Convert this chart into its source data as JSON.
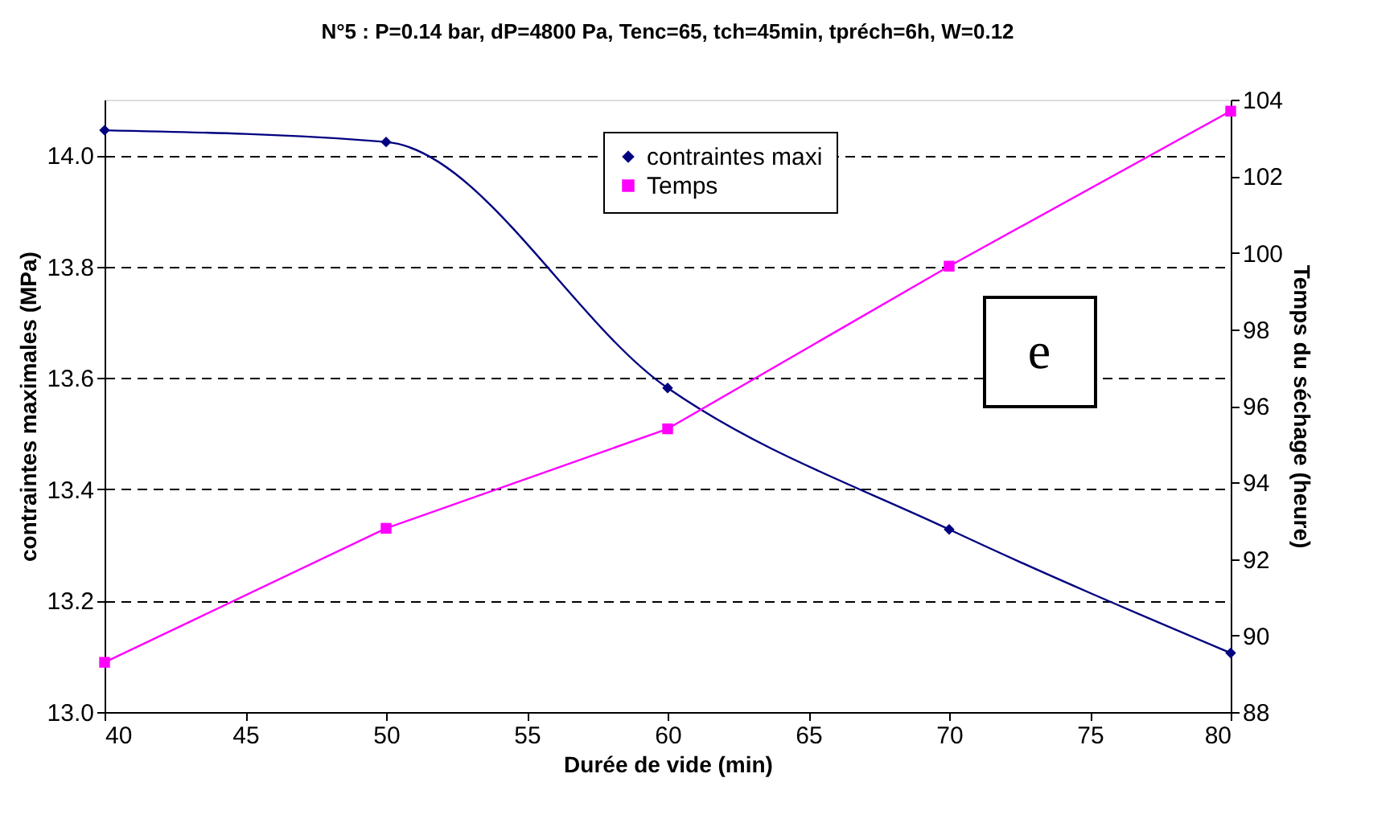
{
  "chart_data": {
    "type": "line",
    "title": "N°5 : P=0.14 bar, dP=4800 Pa, Tenc=65, tch=45min, tpréch=6h, W=0.12",
    "xlabel": "Durée de vide (min)",
    "ylabel": "contraintes maximales (MPa)",
    "y2label": "Temps du séchage (heure)",
    "x": [
      40,
      50,
      60,
      70,
      80
    ],
    "series": [
      {
        "name": "contraintes maxi",
        "color": "#000080",
        "values": [
          14.045,
          14.024,
          13.582,
          13.328,
          13.106
        ],
        "marker": "diamond",
        "line_style": "solid"
      },
      {
        "name": "Temps",
        "color": "#ff00ff",
        "values": [
          89.3,
          92.8,
          95.4,
          99.65,
          103.7
        ],
        "axis": "y2",
        "marker": "square",
        "line_style": "solid"
      }
    ],
    "xlim": [
      40,
      80
    ],
    "xticks": [
      40,
      45,
      50,
      55,
      60,
      65,
      70,
      75,
      80
    ],
    "ylim": [
      13.0,
      14.1
    ],
    "yticks": [
      {
        "value": 13.0,
        "label": "13.0"
      },
      {
        "value": 13.2,
        "label": "13.2"
      },
      {
        "value": 13.4,
        "label": "13.4"
      },
      {
        "value": 13.6,
        "label": "13.6"
      },
      {
        "value": 13.8,
        "label": "13.8"
      },
      {
        "value": 14.0,
        "label": "14.0"
      }
    ],
    "y2lim": [
      88,
      104
    ],
    "y2ticks": [
      88,
      90,
      92,
      94,
      96,
      98,
      100,
      102,
      104
    ],
    "grid": "y",
    "legend": "top",
    "annotations": [
      "e"
    ]
  }
}
